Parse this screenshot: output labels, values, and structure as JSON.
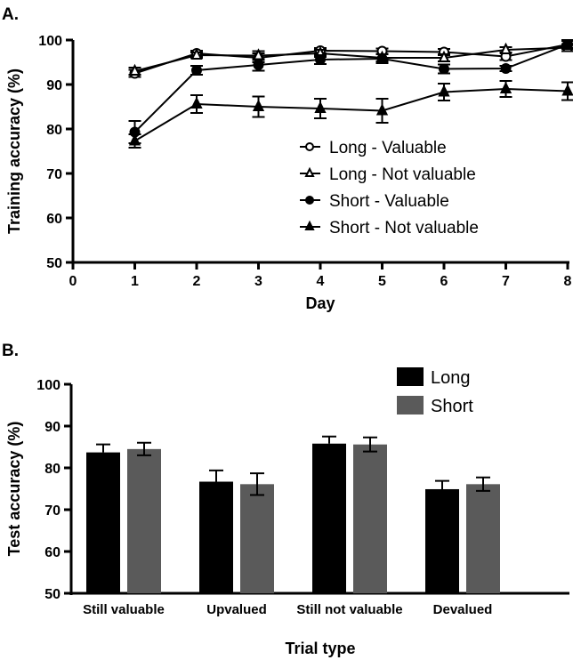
{
  "chart_data": [
    {
      "panel": "A.",
      "type": "line",
      "xlabel": "Day",
      "ylabel": "Training accuracy (%)",
      "xlim": [
        0,
        8
      ],
      "ylim": [
        50,
        100
      ],
      "xticks": [
        0,
        1,
        2,
        3,
        4,
        5,
        6,
        7,
        8
      ],
      "yticks": [
        50,
        60,
        70,
        80,
        90,
        100
      ],
      "legend_position": "center-right",
      "grid": false,
      "x": [
        1,
        2,
        3,
        4,
        5,
        6,
        7,
        8
      ],
      "series": [
        {
          "name": "Long - Valuable",
          "marker": "open-circle",
          "values": [
            92.5,
            97.0,
            96.0,
            97.6,
            97.5,
            97.3,
            96.3,
            99.0
          ],
          "errors": [
            0.8,
            0.6,
            1.0,
            0.6,
            0.6,
            0.7,
            0.8,
            0.8
          ]
        },
        {
          "name": "Long - Not valuable",
          "marker": "open-triangle",
          "values": [
            93.0,
            96.6,
            96.5,
            97.0,
            96.0,
            96.0,
            97.8,
            98.3
          ],
          "errors": [
            0.8,
            0.6,
            1.0,
            0.8,
            0.8,
            0.8,
            0.6,
            0.8
          ]
        },
        {
          "name": "Short - Valuable",
          "marker": "filled-circle",
          "values": [
            79.3,
            93.2,
            94.4,
            95.6,
            95.8,
            93.5,
            93.6,
            99.0
          ],
          "errors": [
            2.5,
            1.0,
            1.3,
            1.0,
            1.0,
            1.0,
            0.6,
            1.0
          ]
        },
        {
          "name": "Short - Not valuable",
          "marker": "filled-triangle",
          "values": [
            77.3,
            85.6,
            85.0,
            84.6,
            84.1,
            88.3,
            89.0,
            88.5
          ],
          "errors": [
            1.5,
            2.0,
            2.3,
            2.2,
            2.7,
            1.9,
            1.8,
            2.0
          ]
        }
      ]
    },
    {
      "panel": "B.",
      "type": "bar",
      "xlabel": "Trial type",
      "ylabel": "Test accuracy (%)",
      "ylim": [
        50,
        100
      ],
      "yticks": [
        50,
        60,
        70,
        80,
        90,
        100
      ],
      "legend_position": "top-right",
      "grid": false,
      "categories": [
        "Still valuable",
        "Upvalued",
        "Still not valuable",
        "Devalued"
      ],
      "series": [
        {
          "name": "Long",
          "color": "#000000",
          "values": [
            83.7,
            76.7,
            85.8,
            74.9
          ],
          "errors": [
            1.9,
            2.7,
            1.7,
            2.0
          ]
        },
        {
          "name": "Short",
          "color": "#5a5a5a",
          "values": [
            84.5,
            76.1,
            85.6,
            76.1
          ],
          "errors": [
            1.5,
            2.6,
            1.7,
            1.6
          ]
        }
      ]
    }
  ]
}
